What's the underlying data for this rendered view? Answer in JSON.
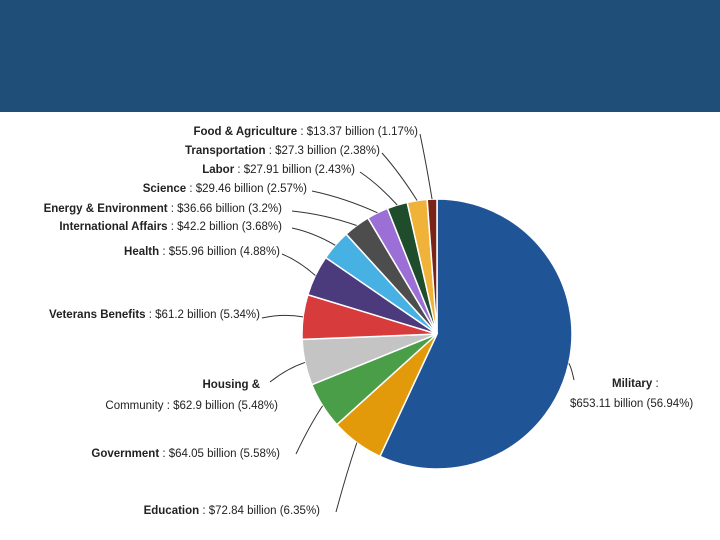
{
  "chart_data": {
    "type": "pie",
    "title": "",
    "unit": "billion",
    "categories": [
      "Military",
      "Education",
      "Government",
      "Housing & Community",
      "Veterans Benefits",
      "Health",
      "International Affairs",
      "Energy & Environment",
      "Science",
      "Labor",
      "Transportation",
      "Food & Agriculture"
    ],
    "slices": [
      {
        "name": "Military",
        "value": 653.11,
        "percent": 56.94,
        "color": "#1f5596",
        "label_name": "Military",
        "label_value": "$653.11 billion (56.94%)"
      },
      {
        "name": "Education",
        "value": 72.84,
        "percent": 6.35,
        "color": "#e29a0b",
        "label_name": "Education",
        "label_value": "$72.84 billion (6.35%)"
      },
      {
        "name": "Government",
        "value": 64.05,
        "percent": 5.58,
        "color": "#4a9e48",
        "label_name": "Government",
        "label_value": "$64.05 billion (5.58%)"
      },
      {
        "name": "Housing & Community",
        "value": 62.9,
        "percent": 5.48,
        "color": "#c4c4c4",
        "label_name": "Housing &",
        "label_name2": "Community",
        "label_value": "$62.9 billion (5.48%)"
      },
      {
        "name": "Veterans Benefits",
        "value": 61.2,
        "percent": 5.34,
        "color": "#d83b3b",
        "label_name": "Veterans Benefits",
        "label_value": "$61.2 billion (5.34%)"
      },
      {
        "name": "Health",
        "value": 55.96,
        "percent": 4.88,
        "color": "#4b3a7c",
        "label_name": "Health",
        "label_value": "$55.96 billion (4.88%)"
      },
      {
        "name": "International Affairs",
        "value": 42.2,
        "percent": 3.68,
        "color": "#48b1e4",
        "label_name": "International Affairs",
        "label_value": "$42.2 billion (3.68%)"
      },
      {
        "name": "Energy & Environment",
        "value": 36.66,
        "percent": 3.2,
        "color": "#4d4d4d",
        "label_name": "Energy & Environment",
        "label_value": "$36.66 billion (3.2%)"
      },
      {
        "name": "Science",
        "value": 29.46,
        "percent": 2.57,
        "color": "#9b6fd6",
        "label_name": "Science",
        "label_value": "$29.46 billion (2.57%)"
      },
      {
        "name": "Labor",
        "value": 27.91,
        "percent": 2.43,
        "color": "#1f4d2b",
        "label_name": "Labor",
        "label_value": "$27.91 billion (2.43%)"
      },
      {
        "name": "Transportation",
        "value": 27.3,
        "percent": 2.38,
        "color": "#f1b23a",
        "label_name": "Transportation",
        "label_value": "$27.3 billion (2.38%)"
      },
      {
        "name": "Food & Agriculture",
        "value": 13.37,
        "percent": 1.17,
        "color": "#7a2418",
        "label_name": "Food & Agriculture",
        "label_value": "$13.37 billion (1.17%)"
      }
    ]
  }
}
